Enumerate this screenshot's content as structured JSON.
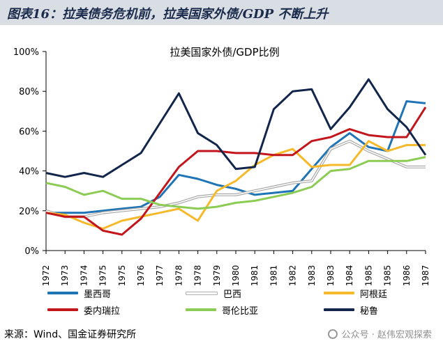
{
  "header": {
    "title": "图表16：拉美债务危机前，拉美国家外债/GDP 不断上升"
  },
  "source_text": "来源：Wind、国金证券研究所",
  "watermark": "公众号 · 赵伟宏观探索",
  "chart_data": {
    "type": "line",
    "title": "拉美国家外债/GDP比例",
    "xlabel": "",
    "ylabel": "",
    "x": [
      "1972",
      "1973",
      "1974",
      "1975",
      "1975",
      "1976",
      "1977",
      "1978",
      "1978",
      "1979",
      "1980",
      "1981",
      "1981",
      "1982",
      "1983",
      "1983",
      "1984",
      "1985",
      "1985",
      "1986",
      "1987"
    ],
    "ylim": [
      0,
      100
    ],
    "yticks": [
      "0%",
      "20%",
      "40%",
      "60%",
      "80%",
      "100%"
    ],
    "grid": false,
    "legend_position": "bottom",
    "series": [
      {
        "name": "墨西哥",
        "color": "#1f74b6",
        "style": "solid",
        "values": [
          19,
          19,
          19,
          20,
          21,
          22,
          27,
          38,
          36,
          33,
          31,
          28,
          29,
          30,
          41,
          52,
          59,
          52,
          50,
          75,
          74
        ]
      },
      {
        "name": "巴西",
        "color": "#a9a9a9",
        "style": "double",
        "values": [
          20,
          17,
          17,
          19,
          20,
          21,
          22,
          24,
          27,
          28,
          28,
          30,
          32,
          34,
          35,
          51,
          55,
          50,
          46,
          42,
          42
        ]
      },
      {
        "name": "阿根廷",
        "color": "#f6b92b",
        "style": "solid",
        "values": [
          19,
          18,
          14,
          11,
          15,
          17,
          19,
          21,
          15,
          30,
          35,
          43,
          48,
          51,
          42,
          43,
          43,
          55,
          50,
          53,
          53
        ]
      },
      {
        "name": "委内瑞拉",
        "color": "#c2161c",
        "style": "solid",
        "values": [
          19,
          17,
          17,
          10,
          8,
          16,
          29,
          42,
          50,
          50,
          49,
          49,
          48,
          48,
          55,
          57,
          61,
          58,
          57,
          57,
          72
        ]
      },
      {
        "name": "哥伦比亚",
        "color": "#8ccc55",
        "style": "solid",
        "values": [
          34,
          32,
          28,
          30,
          26,
          26,
          23,
          22,
          21,
          22,
          24,
          25,
          27,
          29,
          32,
          40,
          41,
          45,
          45,
          45,
          47
        ]
      },
      {
        "name": "秘鲁",
        "color": "#12254a",
        "style": "solid",
        "values": [
          39,
          37,
          39,
          37,
          43,
          49,
          64,
          79,
          59,
          53,
          41,
          42,
          71,
          80,
          81,
          61,
          72,
          86,
          71,
          62,
          48
        ]
      }
    ]
  }
}
